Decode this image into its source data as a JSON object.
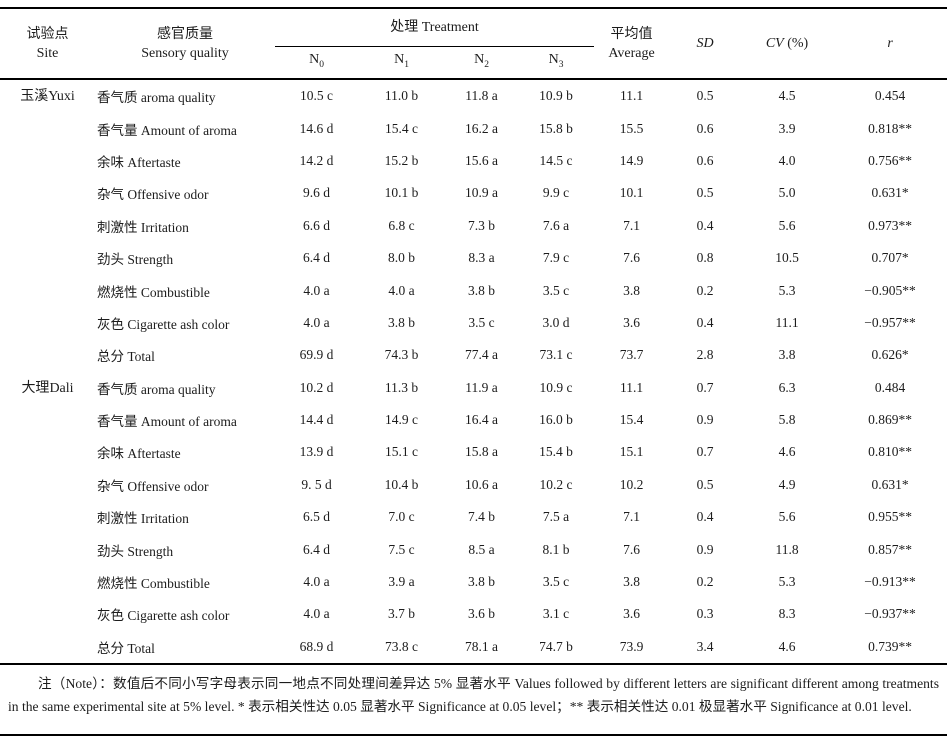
{
  "table": {
    "header": {
      "site_zh": "试验点",
      "site_en": "Site",
      "quality_zh": "感官质量",
      "quality_en": "Sensory quality",
      "treatment": "处理 Treatment",
      "treatments": [
        {
          "base": "N",
          "sub": "0"
        },
        {
          "base": "N",
          "sub": "1"
        },
        {
          "base": "N",
          "sub": "2"
        },
        {
          "base": "N",
          "sub": "3"
        }
      ],
      "avg_zh": "平均值",
      "avg_en": "Average",
      "sd": "SD",
      "cv": "CV",
      "cv_unit": " (%)",
      "r": "r"
    },
    "groups": [
      {
        "site_zh": "玉溪",
        "site_en": "Yuxi",
        "rows": [
          {
            "quality": "香气质 aroma quality",
            "n0": "10.5 c",
            "n1": "11.0 b",
            "n2": "11.8 a",
            "n3": "10.9 b",
            "avg": "11.1",
            "sd": "0.5",
            "cv": "4.5",
            "r": "0.454"
          },
          {
            "quality": "香气量 Amount of aroma",
            "n0": "14.6 d",
            "n1": "15.4 c",
            "n2": "16.2 a",
            "n3": "15.8 b",
            "avg": "15.5",
            "sd": "0.6",
            "cv": "3.9",
            "r": "0.818**"
          },
          {
            "quality": "余味 Aftertaste",
            "n0": "14.2 d",
            "n1": "15.2 b",
            "n2": "15.6 a",
            "n3": "14.5 c",
            "avg": "14.9",
            "sd": "0.6",
            "cv": "4.0",
            "r": "0.756**"
          },
          {
            "quality": "杂气 Offensive odor",
            "n0": "9.6 d",
            "n1": "10.1 b",
            "n2": "10.9 a",
            "n3": "9.9 c",
            "avg": "10.1",
            "sd": "0.5",
            "cv": "5.0",
            "r": "0.631*"
          },
          {
            "quality": "刺激性 Irritation",
            "n0": "6.6 d",
            "n1": "6.8 c",
            "n2": "7.3 b",
            "n3": "7.6 a",
            "avg": "7.1",
            "sd": "0.4",
            "cv": "5.6",
            "r": "0.973**"
          },
          {
            "quality": "劲头 Strength",
            "n0": "6.4 d",
            "n1": "8.0 b",
            "n2": "8.3 a",
            "n3": "7.9 c",
            "avg": "7.6",
            "sd": "0.8",
            "cv": "10.5",
            "r": "0.707*"
          },
          {
            "quality": "燃烧性 Combustible",
            "n0": "4.0 a",
            "n1": "4.0 a",
            "n2": "3.8 b",
            "n3": "3.5 c",
            "avg": "3.8",
            "sd": "0.2",
            "cv": "5.3",
            "r": "−0.905**"
          },
          {
            "quality": "灰色 Cigarette ash color",
            "n0": "4.0 a",
            "n1": "3.8 b",
            "n2": "3.5 c",
            "n3": "3.0 d",
            "avg": "3.6",
            "sd": "0.4",
            "cv": "11.1",
            "r": "−0.957**"
          },
          {
            "quality": "总分 Total",
            "n0": "69.9 d",
            "n1": "74.3 b",
            "n2": "77.4 a",
            "n3": "73.1 c",
            "avg": "73.7",
            "sd": "2.8",
            "cv": "3.8",
            "r": "0.626*"
          }
        ]
      },
      {
        "site_zh": "大理",
        "site_en": "Dali",
        "rows": [
          {
            "quality": "香气质 aroma quality",
            "n0": "10.2 d",
            "n1": "11.3 b",
            "n2": "11.9 a",
            "n3": "10.9 c",
            "avg": "11.1",
            "sd": "0.7",
            "cv": "6.3",
            "r": "0.484"
          },
          {
            "quality": "香气量 Amount of aroma",
            "n0": "14.4 d",
            "n1": "14.9 c",
            "n2": "16.4 a",
            "n3": "16.0 b",
            "avg": "15.4",
            "sd": "0.9",
            "cv": "5.8",
            "r": "0.869**"
          },
          {
            "quality": "余味 Aftertaste",
            "n0": "13.9 d",
            "n1": "15.1 c",
            "n2": "15.8 a",
            "n3": "15.4 b",
            "avg": "15.1",
            "sd": "0.7",
            "cv": "4.6",
            "r": "0.810**"
          },
          {
            "quality": "杂气 Offensive odor",
            "n0": "9. 5 d",
            "n1": "10.4 b",
            "n2": "10.6 a",
            "n3": "10.2 c",
            "avg": "10.2",
            "sd": "0.5",
            "cv": "4.9",
            "r": "0.631*"
          },
          {
            "quality": "刺激性 Irritation",
            "n0": "6.5 d",
            "n1": "7.0 c",
            "n2": "7.4 b",
            "n3": "7.5 a",
            "avg": "7.1",
            "sd": "0.4",
            "cv": "5.6",
            "r": "0.955**"
          },
          {
            "quality": "劲头 Strength",
            "n0": "6.4 d",
            "n1": "7.5 c",
            "n2": "8.5 a",
            "n3": "8.1 b",
            "avg": "7.6",
            "sd": "0.9",
            "cv": "11.8",
            "r": "0.857**"
          },
          {
            "quality": "燃烧性 Combustible",
            "n0": "4.0 a",
            "n1": "3.9 a",
            "n2": "3.8 b",
            "n3": "3.5 c",
            "avg": "3.8",
            "sd": "0.2",
            "cv": "5.3",
            "r": "−0.913**"
          },
          {
            "quality": "灰色 Cigarette ash color",
            "n0": "4.0 a",
            "n1": "3.7 b",
            "n2": "3.6 b",
            "n3": "3.1 c",
            "avg": "3.6",
            "sd": "0.3",
            "cv": "8.3",
            "r": "−0.937**"
          },
          {
            "quality": "总分 Total",
            "n0": "68.9 d",
            "n1": "73.8 c",
            "n2": "78.1 a",
            "n3": "74.7 b",
            "avg": "73.9",
            "sd": "3.4",
            "cv": "4.6",
            "r": "0.739**"
          }
        ]
      }
    ]
  },
  "note": "注（Note）：数值后不同小写字母表示同一地点不同处理间差异达 5% 显著水平 Values followed by different letters are significant different among treatments in the same experimental site at 5% level. * 表示相关性达 0.05 显著水平 Significance at 0.05 level；** 表示相关性达 0.01 极显著水平 Significance at 0.01 level."
}
